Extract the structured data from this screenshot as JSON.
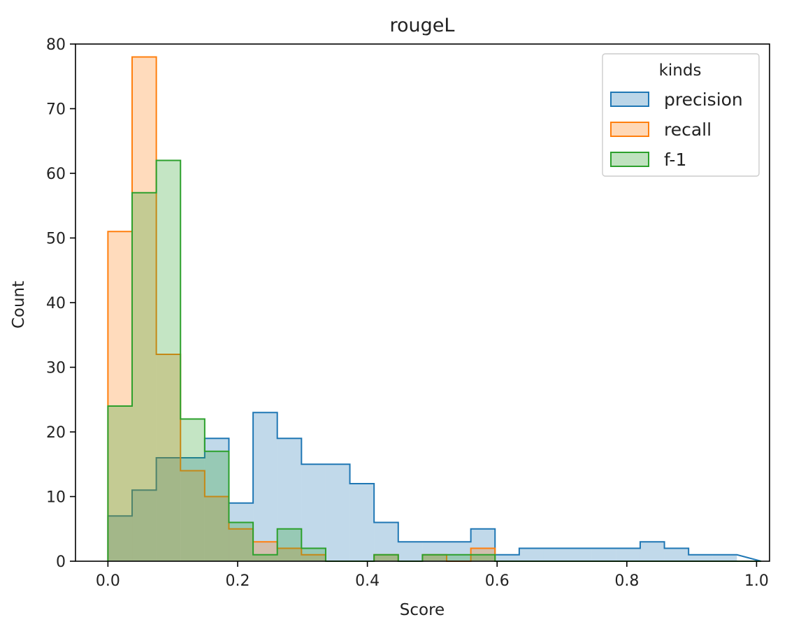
{
  "chart_data": {
    "type": "histogram",
    "title": "rougeL",
    "xlabel": "Score",
    "ylabel": "Count",
    "xlim": [
      -0.05,
      1.02
    ],
    "ylim": [
      0,
      80
    ],
    "bin_width": 0.0373,
    "bin_edges": [
      0.0,
      0.0373,
      0.0746,
      0.1119,
      0.1492,
      0.1865,
      0.2238,
      0.2611,
      0.2984,
      0.3357,
      0.373,
      0.4103,
      0.4476,
      0.4849,
      0.5222,
      0.5595,
      0.5968,
      0.6341,
      0.6714,
      0.7087,
      0.746,
      0.7833,
      0.8206,
      0.8579,
      0.8952,
      0.9325,
      0.9698
    ],
    "x_ticks": [
      "0.0",
      "0.2",
      "0.4",
      "0.6",
      "0.8",
      "1.0"
    ],
    "x_tick_values": [
      0.0,
      0.2,
      0.4,
      0.6,
      0.8,
      1.0
    ],
    "y_ticks": [
      "0",
      "10",
      "20",
      "30",
      "40",
      "50",
      "60",
      "70",
      "80"
    ],
    "y_tick_values": [
      0,
      10,
      20,
      30,
      40,
      50,
      60,
      70,
      80
    ],
    "legend": {
      "title": "kinds",
      "position": "top-right"
    },
    "grid": false,
    "series": [
      {
        "name": "precision",
        "color": "#1f77b4",
        "counts": [
          7,
          11,
          16,
          16,
          19,
          9,
          23,
          19,
          15,
          15,
          12,
          6,
          3,
          3,
          3,
          5,
          1,
          2,
          2,
          2,
          2,
          2,
          3,
          2,
          1,
          1
        ]
      },
      {
        "name": "recall",
        "color": "#ff7f0e",
        "counts": [
          51,
          78,
          32,
          14,
          10,
          5,
          3,
          2,
          1,
          0,
          0,
          1,
          0,
          1,
          0,
          2,
          0,
          0,
          0,
          0,
          0,
          0,
          0,
          0,
          0,
          0
        ]
      },
      {
        "name": "f-1",
        "color": "#2ca02c",
        "counts": [
          24,
          57,
          62,
          22,
          17,
          6,
          1,
          5,
          2,
          0,
          0,
          1,
          0,
          1,
          1,
          1,
          0,
          0,
          0,
          0,
          0,
          0,
          0,
          0,
          0,
          0
        ]
      }
    ]
  }
}
